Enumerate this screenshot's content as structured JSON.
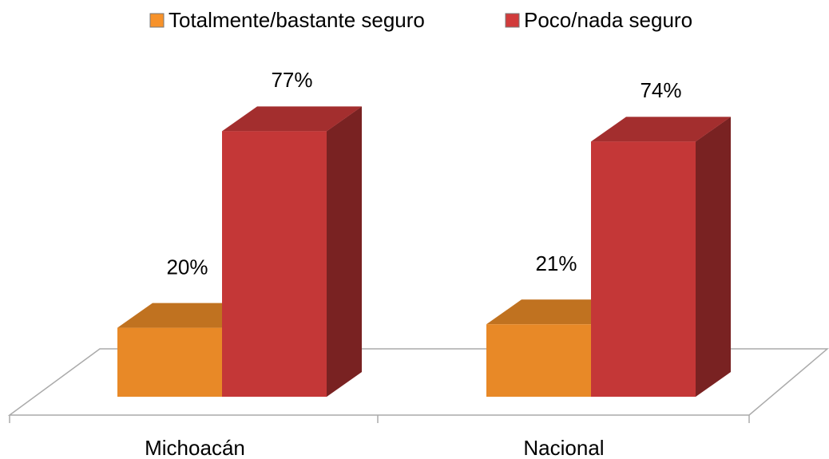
{
  "chart_data": {
    "type": "bar3d",
    "categories": [
      "Michoacán",
      "Nacional"
    ],
    "series": [
      {
        "name": "Totalmente/bastante seguro",
        "color": "#f7922a",
        "values": [
          20,
          21
        ],
        "value_labels": [
          "20%",
          "21%"
        ]
      },
      {
        "name": "Poco/nada seguro",
        "color": "#d13b3b",
        "values": [
          77,
          74
        ],
        "value_labels": [
          "77%",
          "74%"
        ]
      }
    ],
    "legend": "top"
  }
}
